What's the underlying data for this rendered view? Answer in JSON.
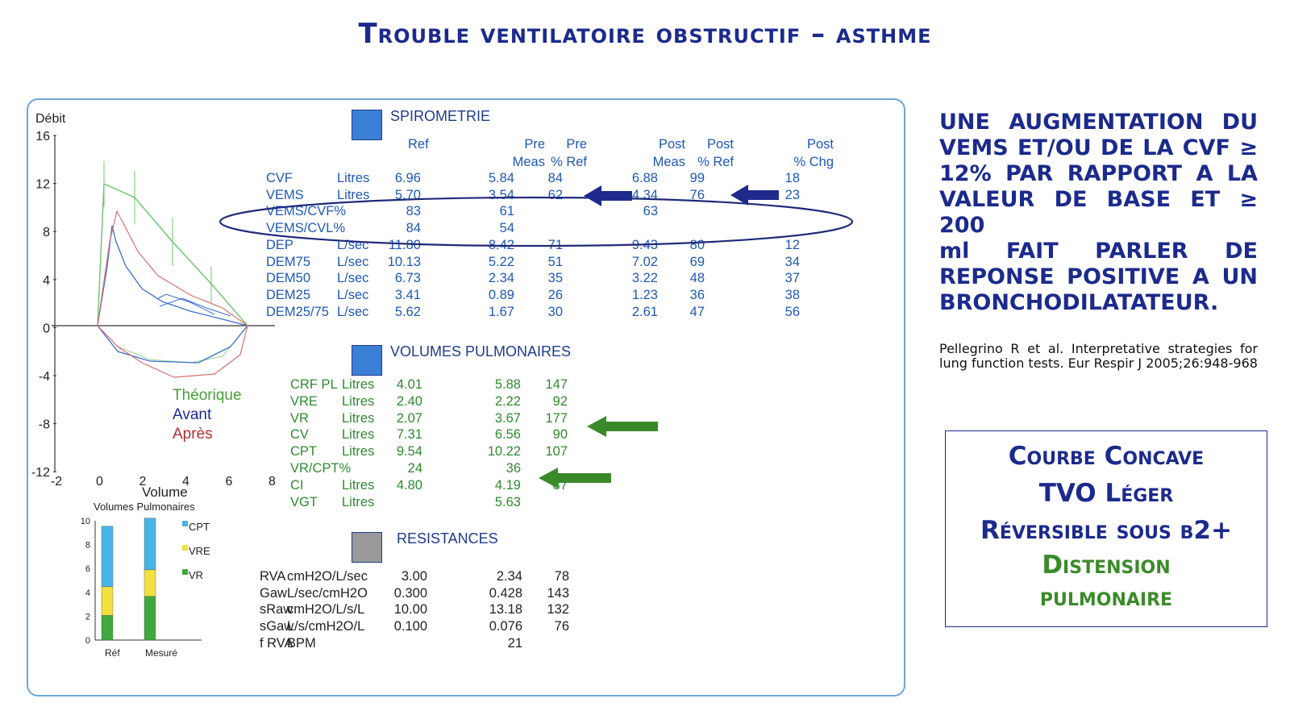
{
  "title": "Trouble ventilatoire obstructif – asthme",
  "chart": {
    "ylabel": "Débit",
    "xlabel": "Volume",
    "yticks": [
      "16",
      "12",
      "8",
      "4",
      "0",
      "-4",
      "-8",
      "-12"
    ],
    "xticks": [
      "-2",
      "0",
      "2",
      "4",
      "6",
      "8"
    ],
    "legend": [
      "Théorique",
      "Avant",
      "Après"
    ]
  },
  "bar": {
    "title": "Volumes Pulmonaires",
    "yticks": [
      "10",
      "8",
      "6",
      "4",
      "2",
      "0"
    ],
    "cats": [
      "Réf",
      "Mesuré"
    ],
    "legend": [
      "CPT",
      "VRE",
      "VR"
    ]
  },
  "chart_data": {
    "type": "bar",
    "title": "Volumes Pulmonaires",
    "categories": [
      "Réf",
      "Mesuré"
    ],
    "series": [
      {
        "name": "VR",
        "values": [
          2.07,
          3.67
        ]
      },
      {
        "name": "VRE",
        "values": [
          2.4,
          2.22
        ]
      },
      {
        "name": "CPT",
        "values": [
          5.07,
          4.33
        ]
      }
    ],
    "ylim": [
      0,
      10
    ]
  },
  "spiro": {
    "title": "SPIROMETRIE",
    "headers": [
      "Ref",
      "Pre",
      "Meas",
      "Pre",
      "% Ref",
      "Post",
      "Meas",
      "Post",
      "% Ref",
      "Post",
      "% Chg"
    ],
    "rows": [
      [
        "CVF",
        "Litres",
        "6.96",
        "5.84",
        "84",
        "6.88",
        "99",
        "18"
      ],
      [
        "VEMS",
        "Litres",
        "5.70",
        "3.54",
        "62",
        "4.34",
        "76",
        "23"
      ],
      [
        "VEMS/CVF%",
        "",
        "83",
        "61",
        "",
        "63",
        "",
        ""
      ],
      [
        "VEMS/CVL%",
        "",
        "84",
        "54",
        "",
        "",
        "",
        ""
      ],
      [
        "DEP",
        "L/sec",
        "11.80",
        "8.42",
        "71",
        "9.43",
        "80",
        "12"
      ],
      [
        "DEM75",
        "L/sec",
        "10.13",
        "5.22",
        "51",
        "7.02",
        "69",
        "34"
      ],
      [
        "DEM50",
        "L/sec",
        "6.73",
        "2.34",
        "35",
        "3.22",
        "48",
        "37"
      ],
      [
        "DEM25",
        "L/sec",
        "3.41",
        "0.89",
        "26",
        "1.23",
        "36",
        "38"
      ],
      [
        "DEM25/75",
        "L/sec",
        "5.62",
        "1.67",
        "30",
        "2.61",
        "47",
        "56"
      ]
    ]
  },
  "volumes": {
    "title": "VOLUMES PULMONAIRES",
    "rows": [
      [
        "CRF PL",
        "Litres",
        "4.01",
        "5.88",
        "147"
      ],
      [
        "VRE",
        "Litres",
        "2.40",
        "2.22",
        "92"
      ],
      [
        "VR",
        "Litres",
        "2.07",
        "3.67",
        "177"
      ],
      [
        "CV",
        "Litres",
        "7.31",
        "6.56",
        "90"
      ],
      [
        "CPT",
        "Litres",
        "9.54",
        "10.22",
        "107"
      ],
      [
        "VR/CPT%",
        "",
        "24",
        "36",
        ""
      ],
      [
        "CI",
        "Litres",
        "4.80",
        "4.19",
        "87"
      ],
      [
        "VGT",
        "Litres",
        "",
        "5.63",
        ""
      ]
    ]
  },
  "resist": {
    "title": "RESISTANCES",
    "rows": [
      [
        "RVA",
        "cmH2O/L/sec",
        "3.00",
        "2.34",
        "78"
      ],
      [
        "Gaw",
        "L/sec/cmH2O",
        "0.300",
        "0.428",
        "143"
      ],
      [
        "sRaw",
        "cmH2O/L/s/L",
        "10.00",
        "13.18",
        "132"
      ],
      [
        "sGaw",
        "L/s/cmH2O/L",
        "0.100",
        "0.076",
        "76"
      ],
      [
        "f RVA",
        "BPM",
        "",
        "21",
        ""
      ]
    ]
  },
  "right": {
    "lines": [
      "UNE AUGMENTATION DU",
      "VEMS ET/OU DE LA CVF ≥",
      "12% PAR RAPPORT A LA",
      "VALEUR DE BASE ET ≥ 200",
      "ml FAIT PARLER DE",
      "REPONSE POSITIVE A UN",
      "BRONCHODILATATEUR."
    ],
    "reference": "Pellegrino R et al. Interpretative strategies for lung function tests. Eur Respir J 2005;26:948-968"
  },
  "box": {
    "line1": "Courbe Concave",
    "line2": "TVO Léger",
    "line3": "Réversible sous β2+",
    "line4": "Distension",
    "line5": "pulmonaire"
  },
  "colors": {
    "title": "#1b2a8c",
    "blue": "#1e58b8",
    "green": "#2f8a2f",
    "theo": "#4fb84f",
    "avant": "#3b6fd0",
    "apres": "#d64a4a"
  }
}
